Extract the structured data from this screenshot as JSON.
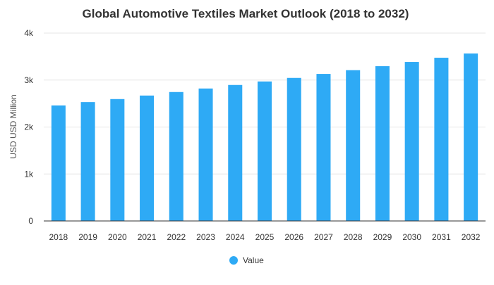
{
  "chart_data": {
    "type": "bar",
    "title": "Global Automotive Textiles Market Outlook (2018 to 2032)",
    "xlabel": "",
    "ylabel": "USD USD Million",
    "categories": [
      "2018",
      "2019",
      "2020",
      "2021",
      "2022",
      "2023",
      "2024",
      "2025",
      "2026",
      "2027",
      "2028",
      "2029",
      "2030",
      "2031",
      "2032"
    ],
    "series": [
      {
        "name": "Value",
        "color": "#2eaaf5",
        "values": [
          2460,
          2530,
          2595,
          2670,
          2745,
          2820,
          2895,
          2970,
          3045,
          3130,
          3210,
          3295,
          3385,
          3475,
          3565
        ]
      }
    ],
    "ylim": [
      0,
      4000
    ],
    "yticks": [
      0,
      1000,
      2000,
      3000,
      4000
    ],
    "ytick_labels": [
      "0",
      "1k",
      "2k",
      "3k",
      "4k"
    ],
    "grid": true,
    "legend_position": "bottom-center"
  }
}
